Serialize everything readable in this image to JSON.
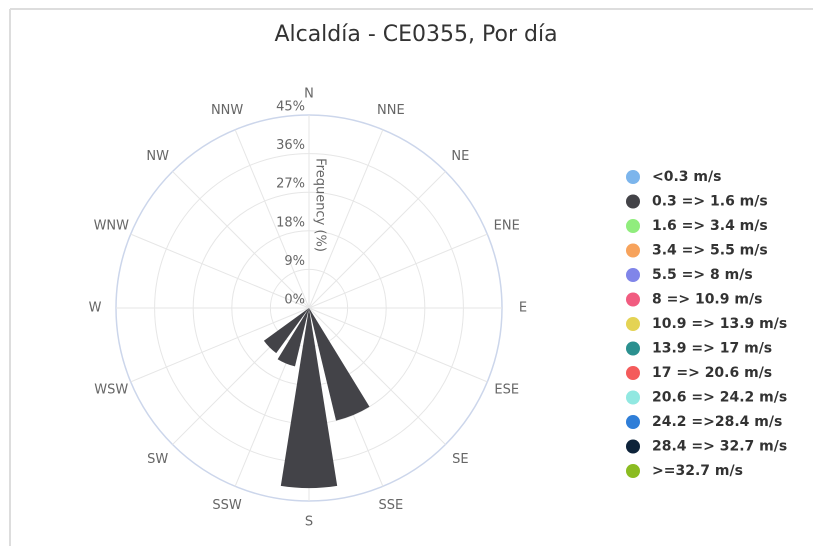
{
  "chart_data": {
    "type": "windrose",
    "title": "Alcaldía - CE0355, Por día",
    "radial_axis_label": "Frequency (%)",
    "categories": [
      "N",
      "NNE",
      "NE",
      "ENE",
      "E",
      "ESE",
      "SE",
      "SSE",
      "S",
      "SSW",
      "SW",
      "WSW",
      "W",
      "WNW",
      "NW",
      "NNW"
    ],
    "rlim": [
      0,
      45
    ],
    "rticks": [
      {
        "value": 0,
        "label": "0%"
      },
      {
        "value": 9,
        "label": "9%"
      },
      {
        "value": 18,
        "label": "18%"
      },
      {
        "value": 27,
        "label": "27%"
      },
      {
        "value": 36,
        "label": "36%"
      },
      {
        "value": 45,
        "label": "45%"
      }
    ],
    "grid": true,
    "legend": "right",
    "series": [
      {
        "name": "<0.3 m/s",
        "color": "#7cb5ec",
        "values": [
          0,
          0,
          0,
          0,
          0,
          0,
          0,
          0,
          0,
          0,
          0,
          0,
          0,
          0,
          0,
          0
        ]
      },
      {
        "name": "0.3 => 1.6 m/s",
        "color": "#434348",
        "values": [
          0,
          0,
          0,
          0,
          0,
          0,
          0,
          27,
          42,
          14,
          13,
          0,
          0,
          0,
          0,
          0
        ]
      },
      {
        "name": "1.6 => 3.4 m/s",
        "color": "#90ed7d",
        "values": [
          0,
          0,
          0,
          0,
          0,
          0,
          0,
          0,
          0,
          0,
          0,
          0,
          0,
          0,
          0,
          0
        ]
      },
      {
        "name": "3.4 => 5.5 m/s",
        "color": "#f7a35c",
        "values": [
          0,
          0,
          0,
          0,
          0,
          0,
          0,
          0,
          0,
          0,
          0,
          0,
          0,
          0,
          0,
          0
        ]
      },
      {
        "name": "5.5 => 8 m/s",
        "color": "#8085e9",
        "values": [
          0,
          0,
          0,
          0,
          0,
          0,
          0,
          0,
          0,
          0,
          0,
          0,
          0,
          0,
          0,
          0
        ]
      },
      {
        "name": "8 => 10.9 m/s",
        "color": "#f15c80",
        "values": [
          0,
          0,
          0,
          0,
          0,
          0,
          0,
          0,
          0,
          0,
          0,
          0,
          0,
          0,
          0,
          0
        ]
      },
      {
        "name": "10.9 => 13.9 m/s",
        "color": "#e4d354",
        "values": [
          0,
          0,
          0,
          0,
          0,
          0,
          0,
          0,
          0,
          0,
          0,
          0,
          0,
          0,
          0,
          0
        ]
      },
      {
        "name": "13.9 => 17 m/s",
        "color": "#2b908f",
        "values": [
          0,
          0,
          0,
          0,
          0,
          0,
          0,
          0,
          0,
          0,
          0,
          0,
          0,
          0,
          0,
          0
        ]
      },
      {
        "name": "17 => 20.6 m/s",
        "color": "#f45b5b",
        "values": [
          0,
          0,
          0,
          0,
          0,
          0,
          0,
          0,
          0,
          0,
          0,
          0,
          0,
          0,
          0,
          0
        ]
      },
      {
        "name": "20.6 => 24.2 m/s",
        "color": "#91e8e1",
        "values": [
          0,
          0,
          0,
          0,
          0,
          0,
          0,
          0,
          0,
          0,
          0,
          0,
          0,
          0,
          0,
          0
        ]
      },
      {
        "name": "24.2 =>28.4 m/s",
        "color": "#2f7ed8",
        "values": [
          0,
          0,
          0,
          0,
          0,
          0,
          0,
          0,
          0,
          0,
          0,
          0,
          0,
          0,
          0,
          0
        ]
      },
      {
        "name": "28.4 => 32.7 m/s",
        "color": "#0d233a",
        "values": [
          0,
          0,
          0,
          0,
          0,
          0,
          0,
          0,
          0,
          0,
          0,
          0,
          0,
          0,
          0,
          0
        ]
      },
      {
        "name": ">=32.7 m/s",
        "color": "#8bbc21",
        "values": [
          0,
          0,
          0,
          0,
          0,
          0,
          0,
          0,
          0,
          0,
          0,
          0,
          0,
          0,
          0,
          0
        ]
      }
    ]
  }
}
